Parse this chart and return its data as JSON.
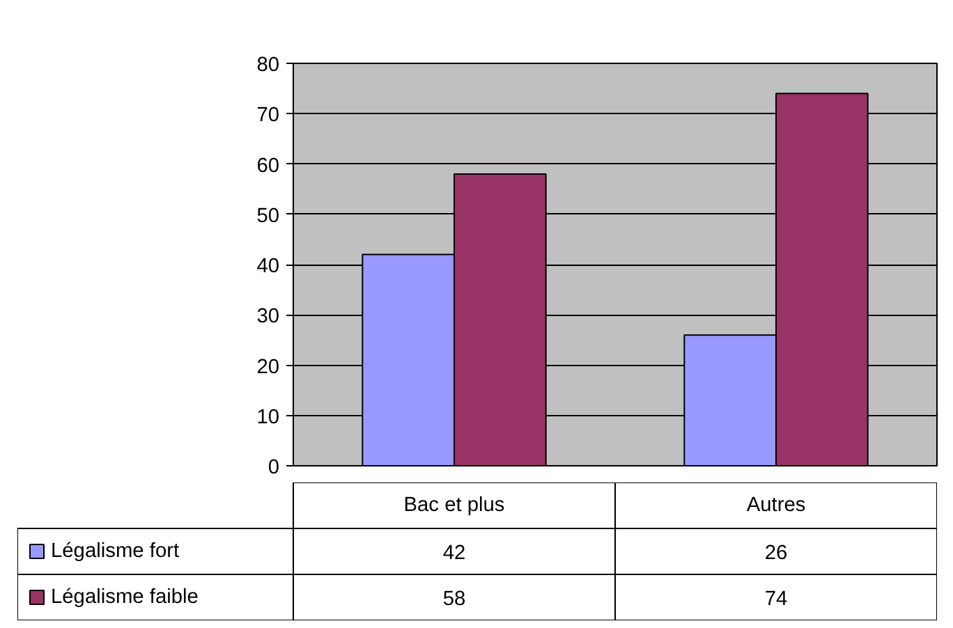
{
  "chart_data": {
    "type": "bar",
    "categories": [
      "Bac et plus",
      "Autres"
    ],
    "series": [
      {
        "name": "Légalisme fort",
        "color": "#9999ff",
        "values": [
          42,
          26
        ]
      },
      {
        "name": "Légalisme faible",
        "color": "#993366",
        "values": [
          58,
          74
        ]
      }
    ],
    "ylim": [
      0,
      80
    ],
    "yticks": [
      0,
      10,
      20,
      30,
      40,
      50,
      60,
      70,
      80
    ],
    "grid": "y",
    "data_labels": true,
    "legend": "bottom left"
  }
}
